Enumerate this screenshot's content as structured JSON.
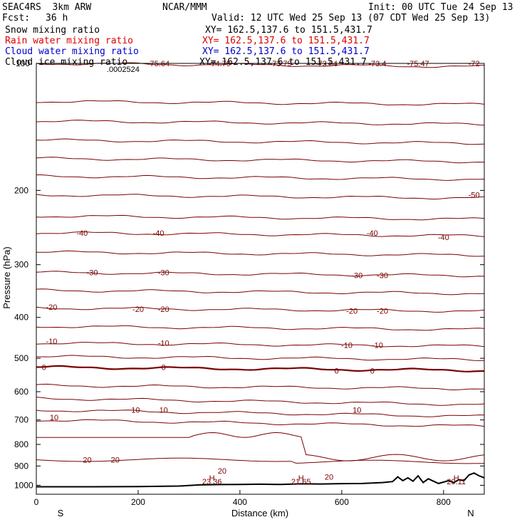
{
  "header": {
    "model": "SEAC4RS  3km ARW",
    "source": "NCAR/MMM",
    "init": "Init: 00 UTC Tue 24 Sep 13",
    "fcst_label": "Fcst:",
    "fcst_value": "36 h",
    "valid": "Valid: 12 UTC Wed 25 Sep 13 (07 CDT Wed 25 Sep 13)",
    "fields": [
      {
        "name": "Snow mixing ratio",
        "xy": "XY= 162.5,137.6 to 151.5,431.7",
        "color": "#000000"
      },
      {
        "name": "Rain water mixing ratio",
        "xy": "XY= 162.5,137.6 to 151.5,431.7",
        "color": "#dd0000"
      },
      {
        "name": "Cloud water mixing ratio",
        "xy": "XY= 162.5,137.6 to 151.5,431.7",
        "color": "#0000cc"
      },
      {
        "name": "Cloud ice mixing ratio",
        "xy": "XY= 162.5,137.6 to 151.5,431.7",
        "color": "#000000"
      }
    ]
  },
  "chart_data": {
    "type": "line",
    "xlabel": "Distance (km)",
    "ylabel": "Pressure (hPa)",
    "xlim": [
      0,
      880
    ],
    "ylim": [
      1050,
      100
    ],
    "y_scale": "log",
    "x_ticks": [
      0,
      200,
      400,
      600,
      800
    ],
    "y_ticks": [
      200,
      300,
      400,
      500,
      600,
      700,
      800,
      900,
      1000
    ],
    "y_top_label": "100",
    "x_end_labels": {
      "left": "S",
      "right": "N"
    },
    "temperature_color": "#7a0000",
    "terrain_color": "#000000",
    "temperature_contour_labels": [
      {
        "text": "-75.64",
        "x": 240,
        "p": 100
      },
      {
        "text": "-74.79",
        "x": 360,
        "p": 100
      },
      {
        "text": "-73.79",
        "x": 480,
        "p": 100
      },
      {
        "text": "-73.64",
        "x": 570,
        "p": 100
      },
      {
        "text": "-73.4",
        "x": 670,
        "p": 100
      },
      {
        "text": "-75.47",
        "x": 750,
        "p": 100
      },
      {
        "text": "-72",
        "x": 860,
        "p": 100
      },
      {
        "text": "-50",
        "x": 860,
        "p": 205
      },
      {
        "text": "-40",
        "x": 90,
        "p": 252
      },
      {
        "text": "-40",
        "x": 240,
        "p": 252
      },
      {
        "text": "-40",
        "x": 660,
        "p": 252
      },
      {
        "text": "-40",
        "x": 800,
        "p": 258
      },
      {
        "text": "-30",
        "x": 110,
        "p": 313
      },
      {
        "text": "-30",
        "x": 250,
        "p": 313
      },
      {
        "text": "-30",
        "x": 630,
        "p": 318
      },
      {
        "text": "-30",
        "x": 680,
        "p": 318
      },
      {
        "text": "-20",
        "x": 30,
        "p": 378
      },
      {
        "text": "-20",
        "x": 200,
        "p": 382
      },
      {
        "text": "-20",
        "x": 250,
        "p": 382
      },
      {
        "text": "-20",
        "x": 620,
        "p": 386
      },
      {
        "text": "-20",
        "x": 680,
        "p": 386
      },
      {
        "text": "-10",
        "x": 30,
        "p": 455
      },
      {
        "text": "-10",
        "x": 250,
        "p": 460
      },
      {
        "text": "-10",
        "x": 610,
        "p": 465
      },
      {
        "text": "-10",
        "x": 670,
        "p": 465
      },
      {
        "text": "0",
        "x": 15,
        "p": 525
      },
      {
        "text": "0",
        "x": 250,
        "p": 525
      },
      {
        "text": "0",
        "x": 590,
        "p": 535
      },
      {
        "text": "0",
        "x": 660,
        "p": 535
      },
      {
        "text": "10",
        "x": 35,
        "p": 690
      },
      {
        "text": "10",
        "x": 195,
        "p": 662
      },
      {
        "text": "10",
        "x": 250,
        "p": 662
      },
      {
        "text": "10",
        "x": 630,
        "p": 662
      },
      {
        "text": "20",
        "x": 100,
        "p": 870
      },
      {
        "text": "20",
        "x": 155,
        "p": 870
      },
      {
        "text": "20",
        "x": 365,
        "p": 923
      },
      {
        "text": "20",
        "x": 575,
        "p": 955
      }
    ],
    "temperature_isotherm_levels_hpa": [
      100,
      123,
      137,
      152,
      168,
      185,
      205,
      230,
      252,
      280,
      313,
      345,
      380,
      420,
      460,
      495,
      525,
      580,
      622,
      663,
      700
    ],
    "terrain_high_labels": [
      {
        "letter": "H",
        "value": "23.36",
        "x": 345
      },
      {
        "letter": "H",
        "value": "21.65",
        "x": 520
      },
      {
        "letter": "H",
        "value": "20.11",
        "x": 825
      }
    ],
    "terrain": {
      "x": [
        0,
        100,
        200,
        280,
        320,
        360,
        400,
        440,
        480,
        520,
        560,
        600,
        640,
        680,
        700,
        710,
        720,
        730,
        740,
        750,
        760,
        770,
        790,
        810,
        820,
        830,
        840,
        850,
        860,
        870,
        880
      ],
      "p": [
        1008,
        1008,
        1007,
        1004,
        998,
        996,
        995,
        994,
        995,
        992,
        993,
        991,
        990,
        985,
        980,
        955,
        975,
        960,
        978,
        950,
        985,
        965,
        990,
        975,
        985,
        970,
        975,
        945,
        935,
        950,
        960
      ]
    },
    "snow_label": ".0002524"
  }
}
